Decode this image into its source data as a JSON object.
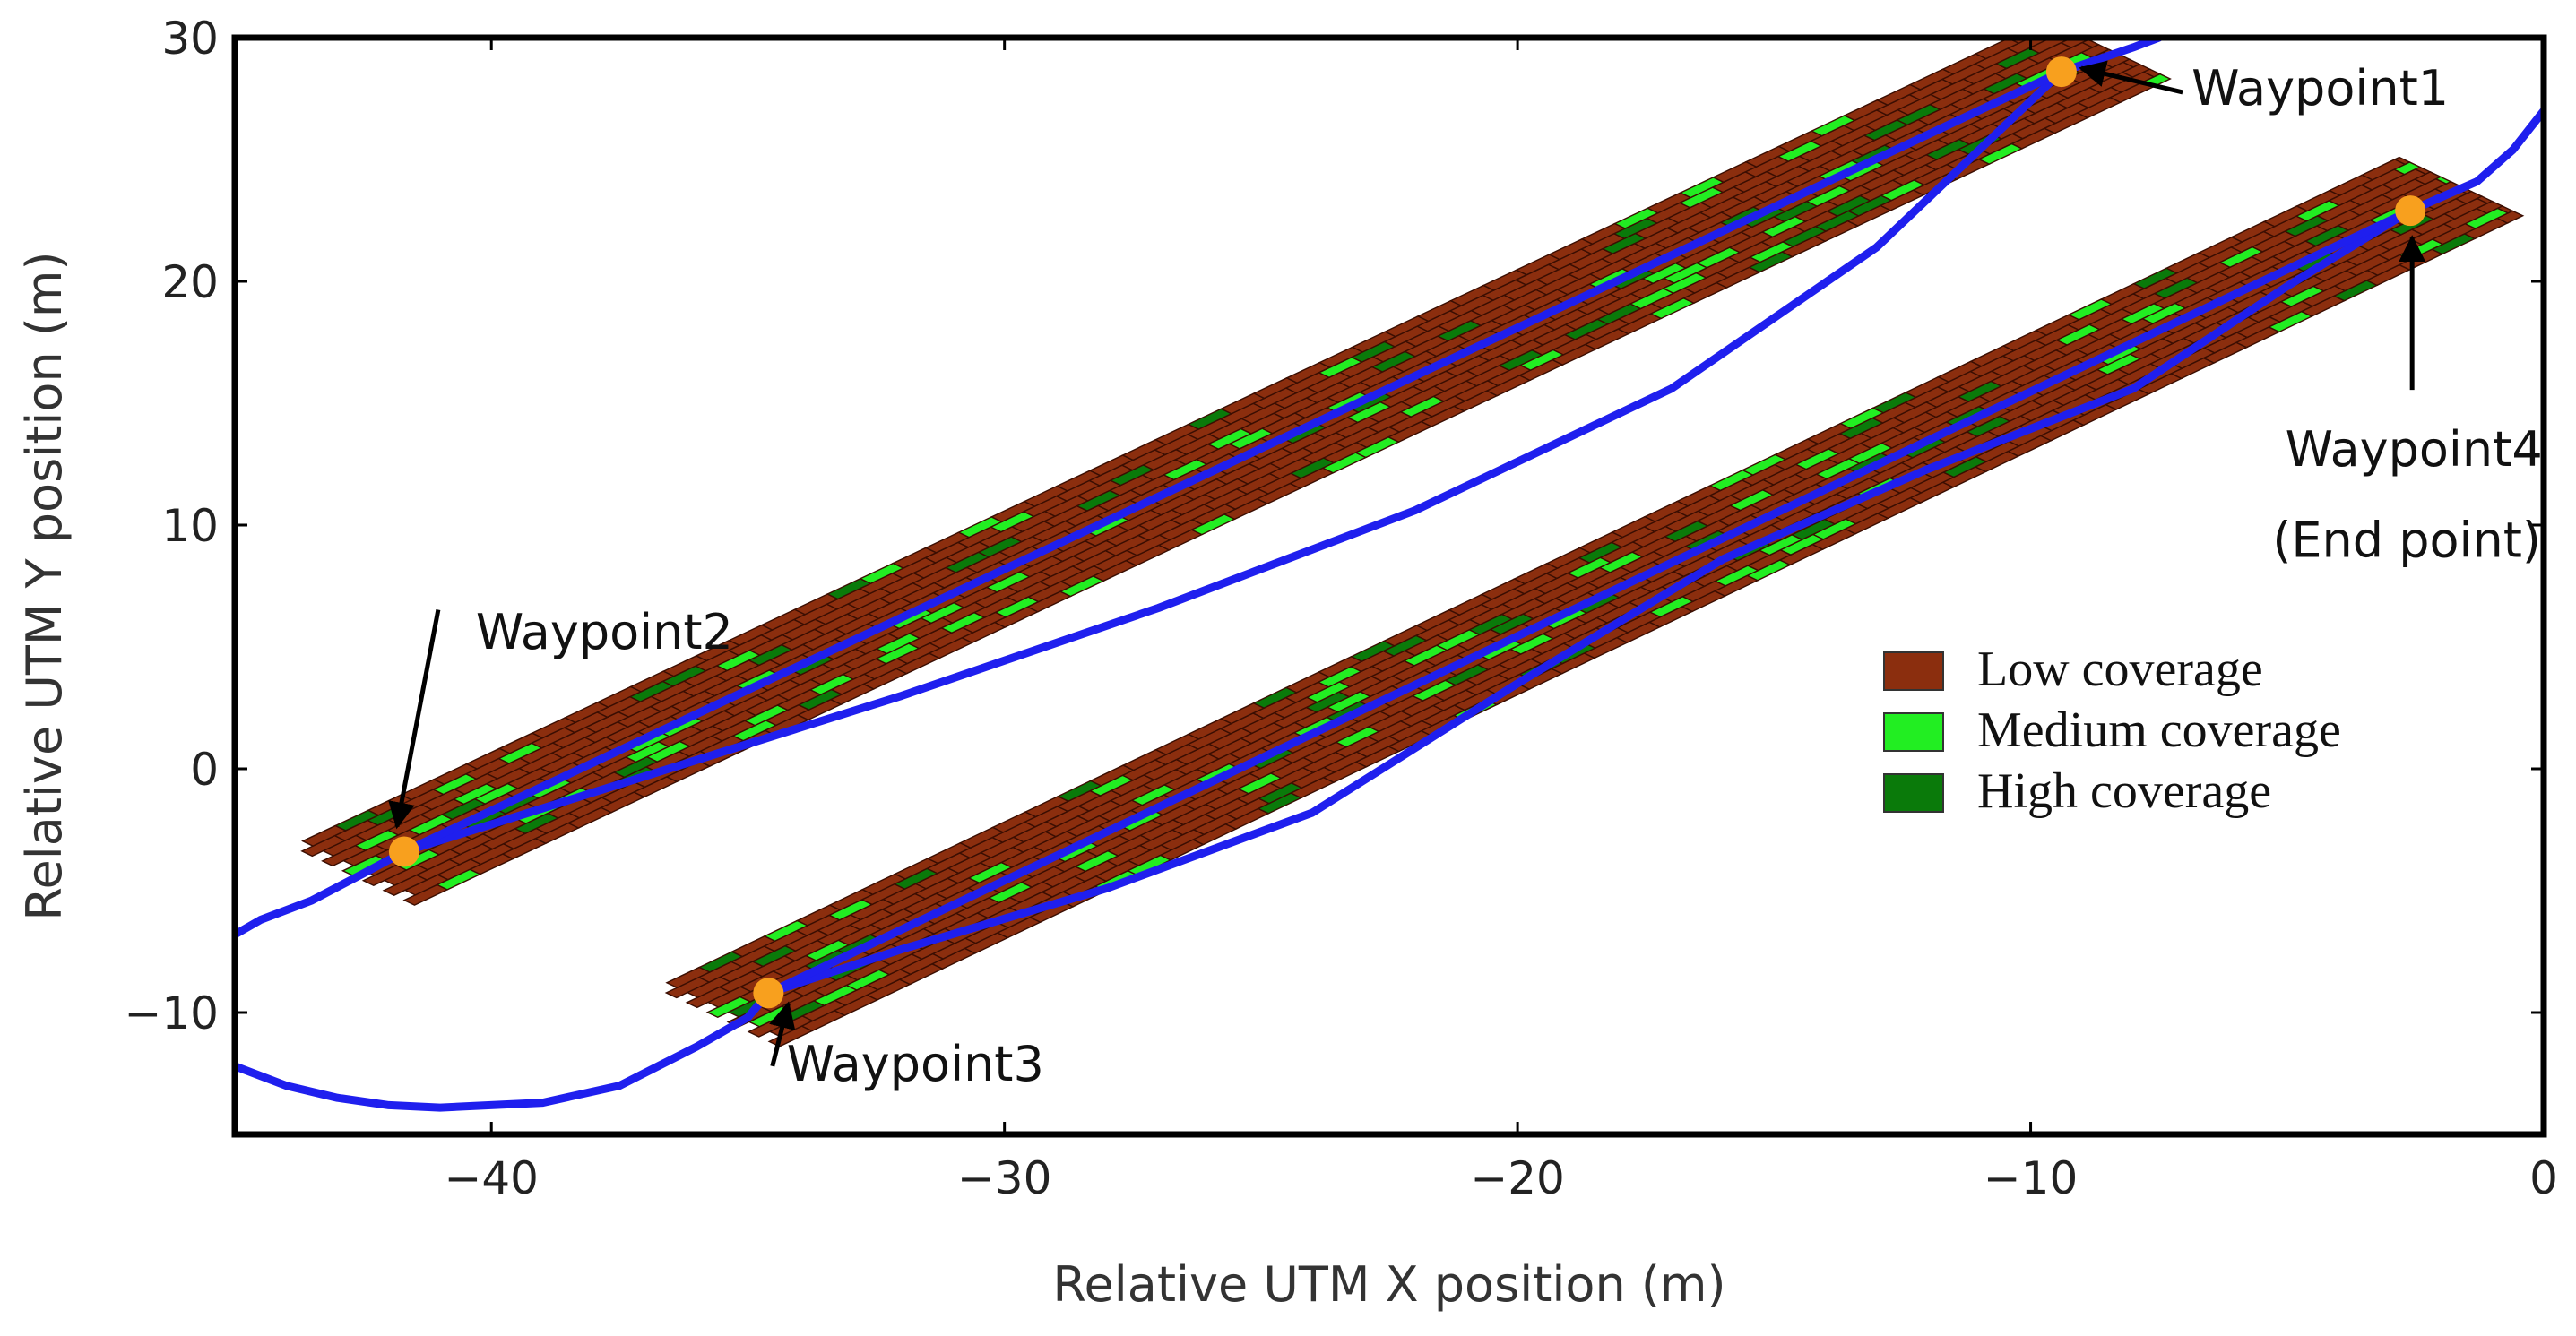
{
  "chart_data": {
    "type": "line",
    "title": "",
    "xlabel": "Relative UTM X position (m)",
    "ylabel": "Relative UTM Y position (m)",
    "xlim": [
      -45,
      0
    ],
    "ylim": [
      -15,
      30
    ],
    "xticks": [
      -40,
      -30,
      -20,
      -10,
      0
    ],
    "yticks": [
      -10,
      0,
      10,
      20,
      30
    ],
    "grid": false,
    "legend_position": "right-center",
    "legend": [
      {
        "label": "Low coverage",
        "color": "#8B2E0E"
      },
      {
        "label": "Medium coverage",
        "color": "#22EE22"
      },
      {
        "label": "High coverage",
        "color": "#0A7A0A"
      }
    ],
    "colors": {
      "path": "#1F1FEE",
      "waypoint": "#F8A01E",
      "low": "#8B2E0E",
      "medium": "#22EE22",
      "high": "#0A7A0A",
      "grid_line": "#3A0E02"
    },
    "path": {
      "x": [
        -45,
        -44.5,
        -43.5,
        -42.5,
        -41.7,
        -37,
        -32,
        -27,
        -22,
        -17,
        -13,
        -9.4,
        -8,
        -7.5
      ],
      "y": [
        -6.8,
        -6.2,
        -5.4,
        -4.3,
        -3.4,
        -0.3,
        3,
        6.6,
        10.6,
        15.6,
        21.4,
        28.6,
        29.6,
        30
      ]
    },
    "path2": {
      "x": [
        -45,
        -44,
        -43,
        -42,
        -41,
        -39,
        -37.5,
        -36,
        -35,
        -34.6,
        -32,
        -28,
        -24,
        -20,
        -16,
        -12,
        -8,
        -5,
        -2.6,
        -1.3,
        -0.6,
        0
      ],
      "y": [
        -12.2,
        -13,
        -13.5,
        -13.8,
        -13.9,
        -13.7,
        -13,
        -11.4,
        -10.2,
        -9.2,
        -7.4,
        -4.9,
        -1.8,
        3.5,
        8.6,
        12.3,
        15.6,
        19.8,
        22.9,
        24.1,
        25.4,
        27
      ]
    },
    "swaths": [
      {
        "from": [
          -41.7,
          -3.4
        ],
        "to": [
          -9.4,
          28.6
        ],
        "start_ext": 1.4,
        "end_ext": 1.3,
        "half_width": 1.7
      },
      {
        "from": [
          -34.6,
          -9.2
        ],
        "to": [
          -2.6,
          22.9
        ],
        "start_ext": 1.4,
        "end_ext": 1.4,
        "half_width": 1.7
      }
    ],
    "waypoints": [
      {
        "name": "Waypoint1",
        "x": -9.4,
        "y": 28.6
      },
      {
        "name": "Waypoint2",
        "x": -41.7,
        "y": -3.4
      },
      {
        "name": "Waypoint3",
        "x": -34.6,
        "y": -9.2
      },
      {
        "name": "Waypoint4",
        "x": -2.6,
        "y": 22.9
      }
    ],
    "annotations": [
      {
        "text": "Waypoint1",
        "x": -9.1,
        "y": 28.2,
        "text_anchor": "right-of-target"
      },
      {
        "text": "Waypoint2",
        "x": -42.4,
        "y": 7.5,
        "text_anchor": "above-target"
      },
      {
        "text": "Waypoint3",
        "x": -30.4,
        "y": -11.1,
        "text_anchor": "right-of-target"
      },
      {
        "text": "Waypoint4",
        "x": -2.6,
        "y": 13.9,
        "text_anchor": "below-target"
      },
      {
        "text": "(End point)",
        "x": -2.6,
        "y": 10.9,
        "text_anchor": "below-target"
      }
    ]
  }
}
